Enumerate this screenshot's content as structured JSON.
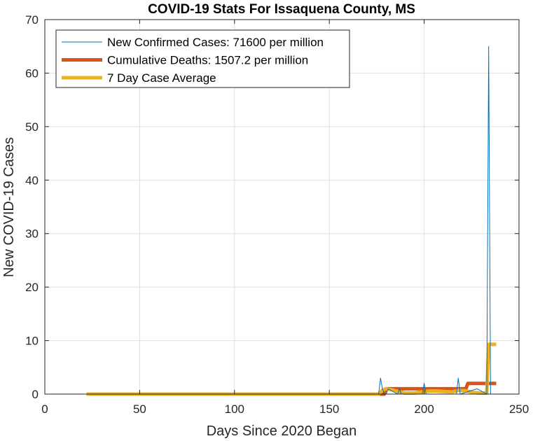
{
  "chart_data": {
    "type": "line",
    "title": "COVID-19 Stats For Issaquena County, MS",
    "xlabel": "Days Since 2020 Began",
    "ylabel": "New COVID-19 Cases",
    "xlim": [
      0,
      250
    ],
    "ylim": [
      0,
      70
    ],
    "xticks": [
      0,
      50,
      100,
      150,
      200,
      250
    ],
    "yticks": [
      0,
      10,
      20,
      30,
      40,
      50,
      60,
      70
    ],
    "grid": true,
    "legend_position": "top-left",
    "series": [
      {
        "name": "New Confirmed Cases: 71600 per million",
        "color": "#0072BD",
        "line_style": "thin",
        "x": [
          22,
          176,
          177,
          178,
          179,
          180,
          181,
          186,
          187,
          188,
          199,
          200,
          201,
          210,
          217,
          218,
          219,
          228,
          233,
          234,
          235,
          236
        ],
        "y": [
          0,
          0,
          3,
          1,
          0,
          0,
          1,
          0,
          1,
          0,
          0,
          2,
          0,
          0,
          0,
          3,
          0,
          1,
          0,
          65,
          0,
          0
        ]
      },
      {
        "name": "Cumulative Deaths: 1507.2 per million",
        "color": "#D95319",
        "line_style": "thick",
        "x": [
          22,
          179,
          180,
          222,
          223,
          238
        ],
        "y": [
          0,
          0,
          1,
          1,
          2,
          2
        ]
      },
      {
        "name": "7 Day Case Average",
        "color": "#EDB120",
        "line_style": "thick",
        "x": [
          22,
          176,
          178,
          180,
          183,
          186,
          190,
          195,
          200,
          205,
          210,
          215,
          218,
          222,
          226,
          230,
          233,
          234,
          235,
          238
        ],
        "y": [
          0,
          0,
          0.7,
          1.0,
          0.8,
          0.5,
          0.2,
          0.2,
          0.5,
          0.6,
          0.5,
          0.4,
          0.7,
          0.6,
          0.3,
          0.2,
          0.2,
          9.3,
          9.3,
          9.3
        ]
      }
    ]
  }
}
